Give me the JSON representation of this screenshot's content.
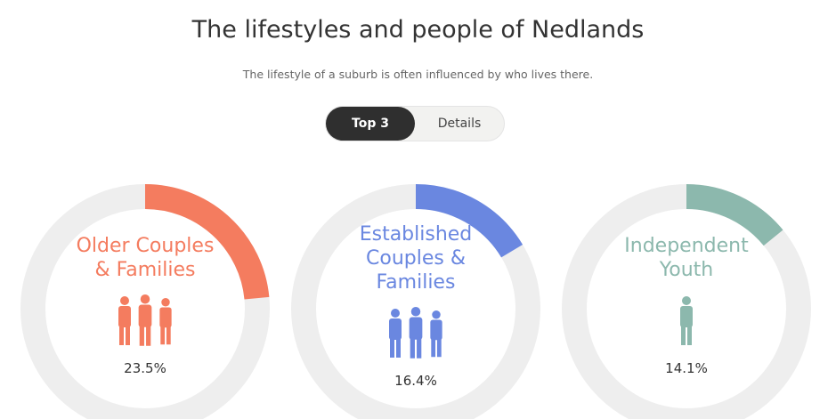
{
  "header": {
    "title": "The lifestyles and people of Nedlands",
    "subtitle": "The lifestyle of a suburb is often influenced by who lives there."
  },
  "toggle": {
    "options": [
      "Top 3",
      "Details"
    ],
    "selected": 0
  },
  "chart_data": [
    {
      "type": "donut",
      "title": "Older Couples & Families",
      "value": 23.5,
      "value_label": "23.5%",
      "color": "#f47c5f",
      "ylim": [
        0,
        100
      ]
    },
    {
      "type": "donut",
      "title": "Established Couples & Families",
      "value": 16.4,
      "value_label": "16.4%",
      "color": "#6a87e0",
      "ylim": [
        0,
        100
      ]
    },
    {
      "type": "donut",
      "title": "Independent Youth",
      "value": 14.1,
      "value_label": "14.1%",
      "color": "#8cb8ad",
      "ylim": [
        0,
        100
      ]
    }
  ]
}
